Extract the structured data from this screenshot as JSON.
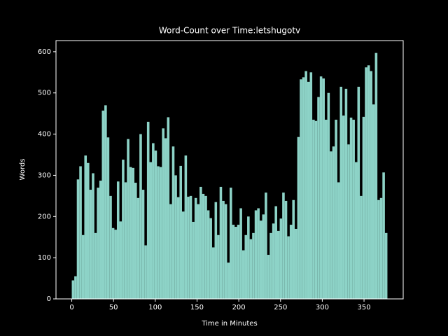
{
  "chart_data": {
    "type": "histogram",
    "title": "Word-Count over Time:letshugotv",
    "x_label": "Time in Minutes",
    "y_label": "Words",
    "color": "#8dd3c7",
    "bins": [
      0,
      3,
      6,
      9,
      12,
      15,
      18,
      21,
      24,
      27,
      30,
      33,
      36,
      39,
      42,
      45,
      48,
      51,
      54,
      57,
      60,
      63,
      66,
      69,
      72,
      75,
      78,
      81,
      84,
      87,
      90,
      93,
      96,
      99,
      102,
      105,
      108,
      111,
      114,
      117,
      120,
      123,
      126,
      129,
      132,
      135,
      138,
      141,
      144,
      147,
      150,
      153,
      156,
      159,
      162,
      165,
      168,
      171,
      174,
      177,
      180,
      183,
      186,
      189,
      192,
      195,
      198,
      201,
      204,
      207,
      210,
      213,
      216,
      219,
      222,
      225,
      228,
      231,
      234,
      237,
      240,
      243,
      246,
      249,
      252,
      255,
      258,
      261,
      264,
      267,
      270,
      273,
      276,
      279,
      282,
      285,
      288,
      291,
      294,
      297,
      300,
      303,
      306,
      309,
      312,
      315,
      318,
      321,
      324,
      327,
      330,
      333,
      336,
      339,
      342,
      345,
      348,
      351,
      354,
      357,
      360,
      363,
      366,
      369,
      372,
      375,
      378
    ],
    "values": [
      45,
      55,
      290,
      322,
      155,
      348,
      330,
      265,
      305,
      160,
      270,
      287,
      457,
      470,
      392,
      250,
      172,
      168,
      285,
      188,
      338,
      283,
      388,
      320,
      318,
      282,
      245,
      400,
      265,
      130,
      430,
      332,
      378,
      360,
      322,
      320,
      414,
      390,
      441,
      230,
      370,
      300,
      247,
      323,
      212,
      348,
      248,
      250,
      187,
      245,
      230,
      272,
      255,
      250,
      215,
      196,
      125,
      235,
      155,
      272,
      238,
      230,
      88,
      270,
      180,
      175,
      180,
      220,
      118,
      155,
      200,
      145,
      160,
      215,
      220,
      190,
      205,
      258,
      107,
      160,
      183,
      225,
      165,
      195,
      258,
      238,
      152,
      180,
      240,
      170,
      393,
      533,
      538,
      553,
      527,
      550,
      435,
      432,
      490,
      540,
      535,
      435,
      500,
      358,
      370,
      435,
      283,
      515,
      445,
      510,
      375,
      440,
      435,
      332,
      515,
      250,
      442,
      562,
      567,
      553,
      472,
      597,
      240,
      245,
      307,
      160
    ],
    "xlim": [
      -18.9,
      396.9
    ],
    "xticks": [
      0,
      50,
      100,
      150,
      200,
      250,
      300,
      350
    ],
    "ylim": [
      0,
      627
    ],
    "yticks": [
      0,
      100,
      200,
      300,
      400,
      500,
      600
    ]
  }
}
